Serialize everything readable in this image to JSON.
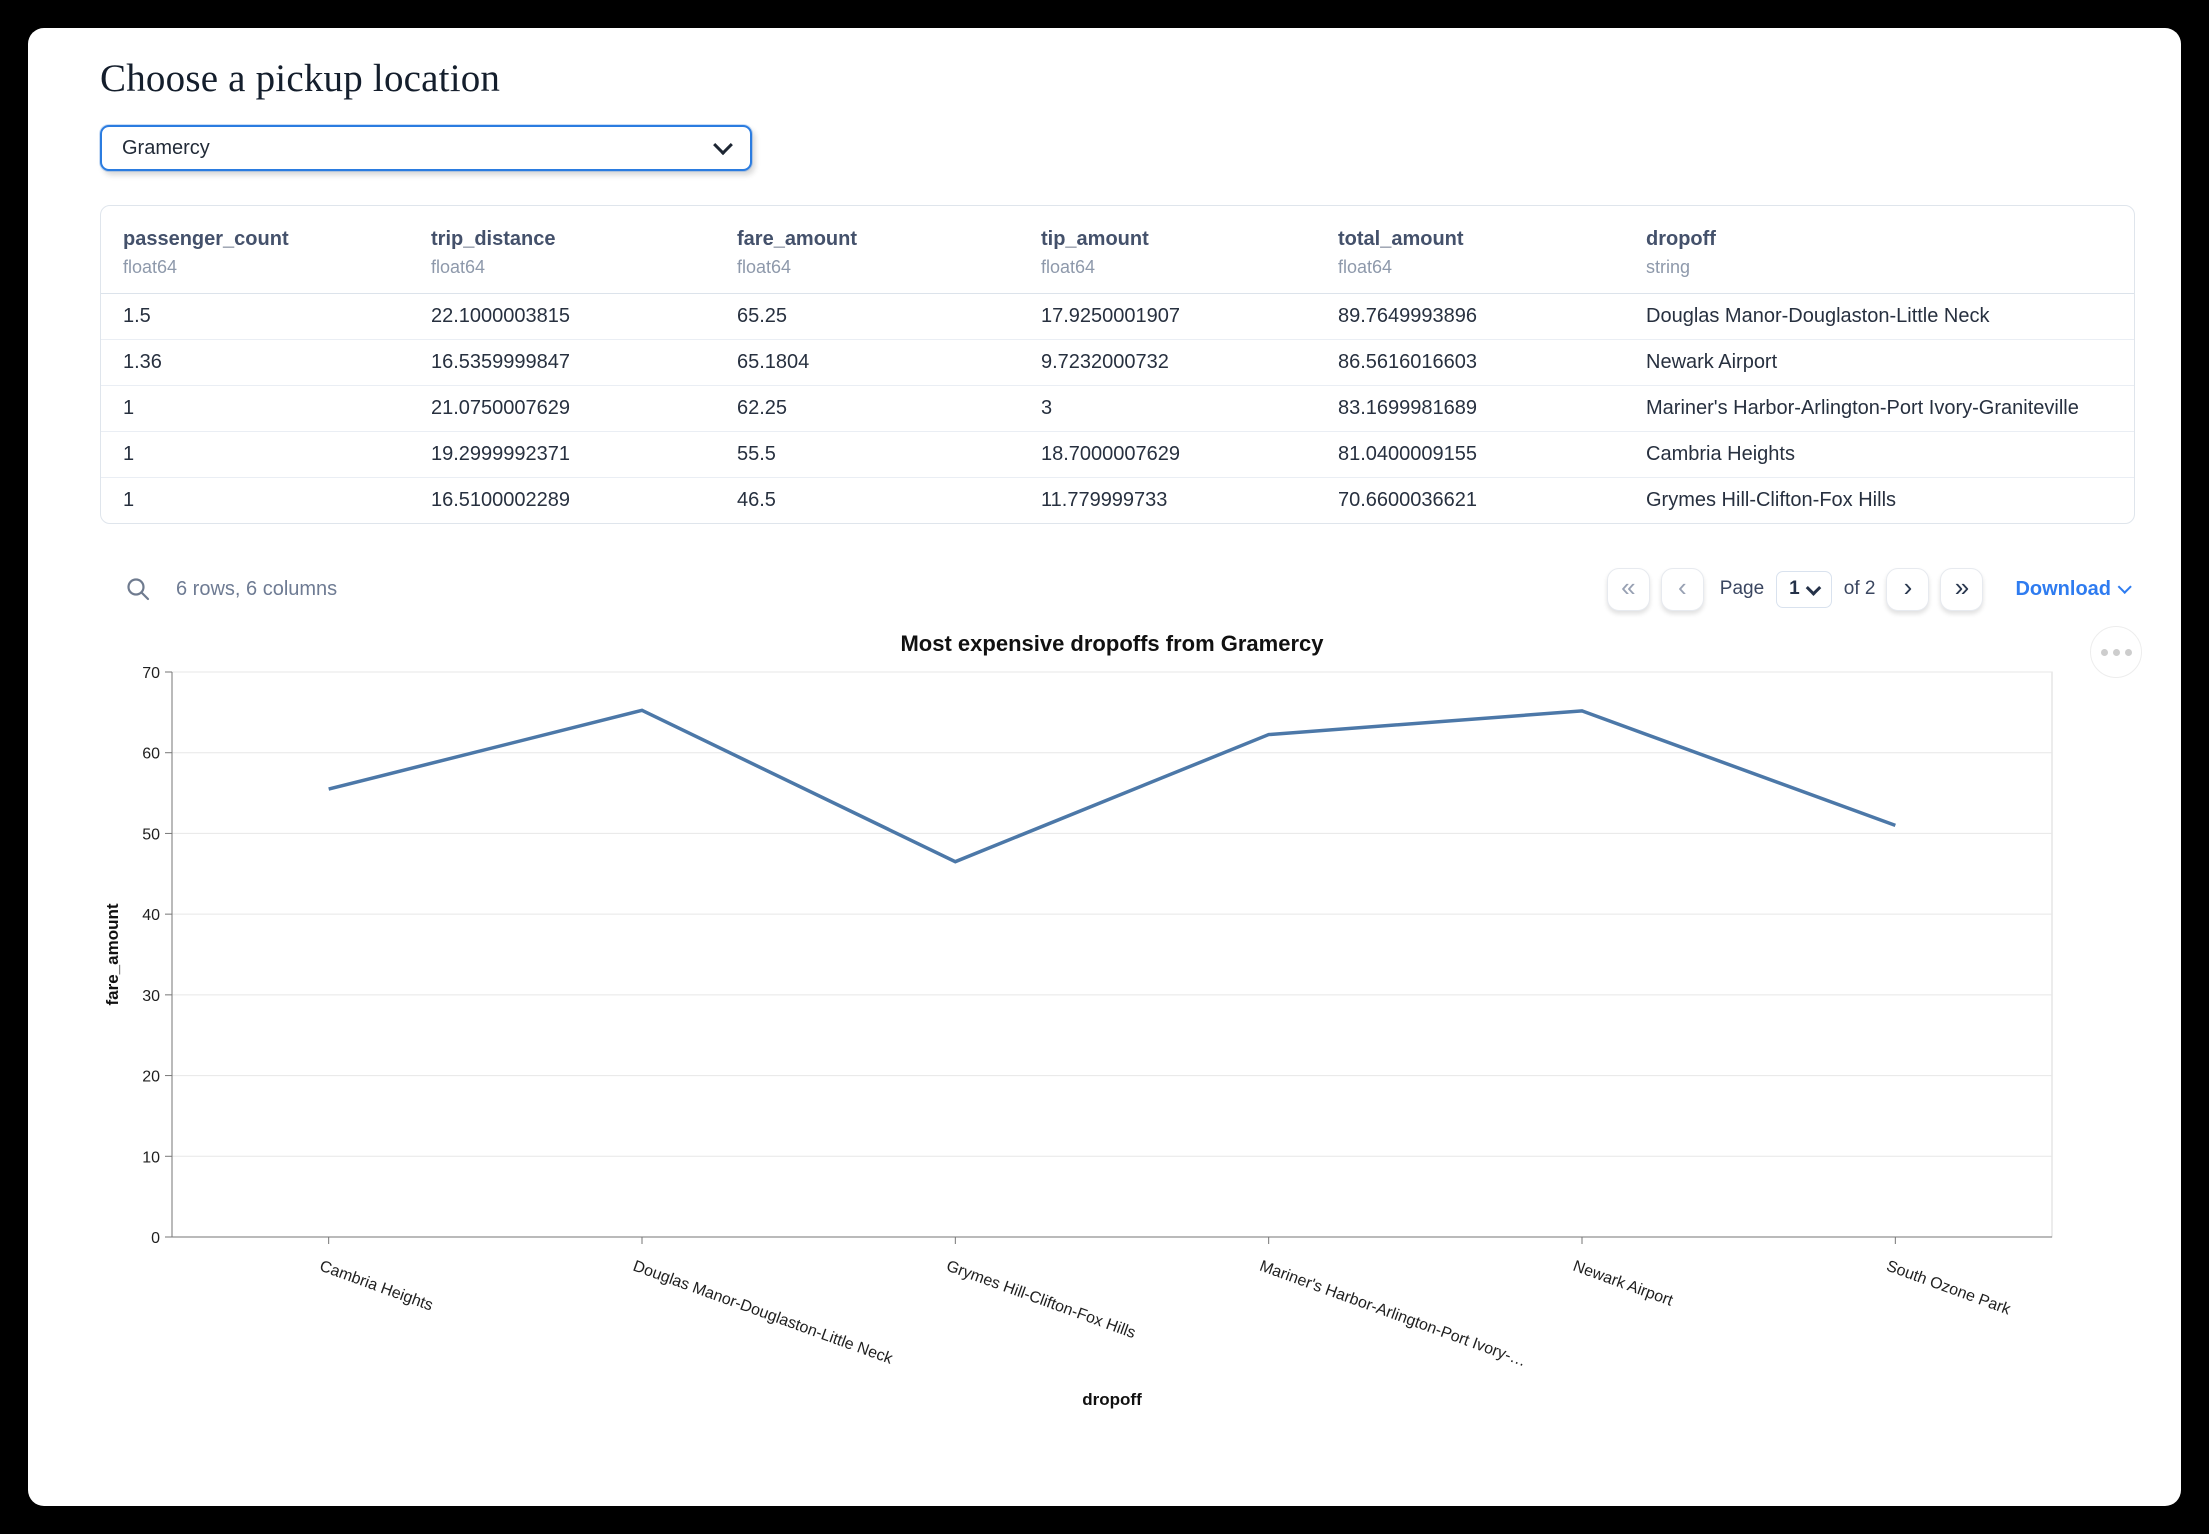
{
  "header": {
    "title": "Choose a pickup location"
  },
  "pickup_select": {
    "value": "Gramercy"
  },
  "table": {
    "columns": [
      {
        "name": "passenger_count",
        "type": "float64"
      },
      {
        "name": "trip_distance",
        "type": "float64"
      },
      {
        "name": "fare_amount",
        "type": "float64"
      },
      {
        "name": "tip_amount",
        "type": "float64"
      },
      {
        "name": "total_amount",
        "type": "float64"
      },
      {
        "name": "dropoff",
        "type": "string"
      }
    ],
    "rows": [
      [
        "1.5",
        "22.1000003815",
        "65.25",
        "17.9250001907",
        "89.7649993896",
        "Douglas Manor-Douglaston-Little Neck"
      ],
      [
        "1.36",
        "16.5359999847",
        "65.1804",
        "9.7232000732",
        "86.5616016603",
        "Newark Airport"
      ],
      [
        "1",
        "21.0750007629",
        "62.25",
        "3",
        "83.1699981689",
        "Mariner's Harbor-Arlington-Port Ivory-Graniteville"
      ],
      [
        "1",
        "19.2999992371",
        "55.5",
        "18.7000007629",
        "81.0400009155",
        "Cambria Heights"
      ],
      [
        "1",
        "16.5100002289",
        "46.5",
        "11.779999733",
        "70.6600036621",
        "Grymes Hill-Clifton-Fox Hills"
      ]
    ]
  },
  "table_footer": {
    "summary": "6 rows, 6 columns",
    "pagination": {
      "first_icon": "«",
      "prev_icon": "‹",
      "next_icon": "›",
      "last_icon": "»",
      "page_label": "Page",
      "page_value": "1",
      "of_label": "of 2"
    },
    "download_label": "Download"
  },
  "chart_data": {
    "type": "line",
    "title": "Most expensive dropoffs from Gramercy",
    "xlabel": "dropoff",
    "ylabel": "fare_amount",
    "categories": [
      "Cambria Heights",
      "Douglas Manor-Douglaston-Little Neck",
      "Grymes Hill-Clifton-Fox Hills",
      "Mariner's Harbor-Arlington-Port Ivory-…",
      "Newark Airport",
      "South Ozone Park"
    ],
    "values": [
      55.5,
      65.25,
      46.5,
      62.25,
      65.1804,
      51
    ],
    "ylim": [
      0,
      70
    ],
    "yticks": [
      0,
      10,
      20,
      30,
      40,
      50,
      60,
      70
    ],
    "grid": true,
    "legend": "none",
    "line_color": "#4c78a8"
  },
  "colors": {
    "accent": "#2b7ce0",
    "link": "#2f7cf0",
    "line": "#4c78a8"
  }
}
